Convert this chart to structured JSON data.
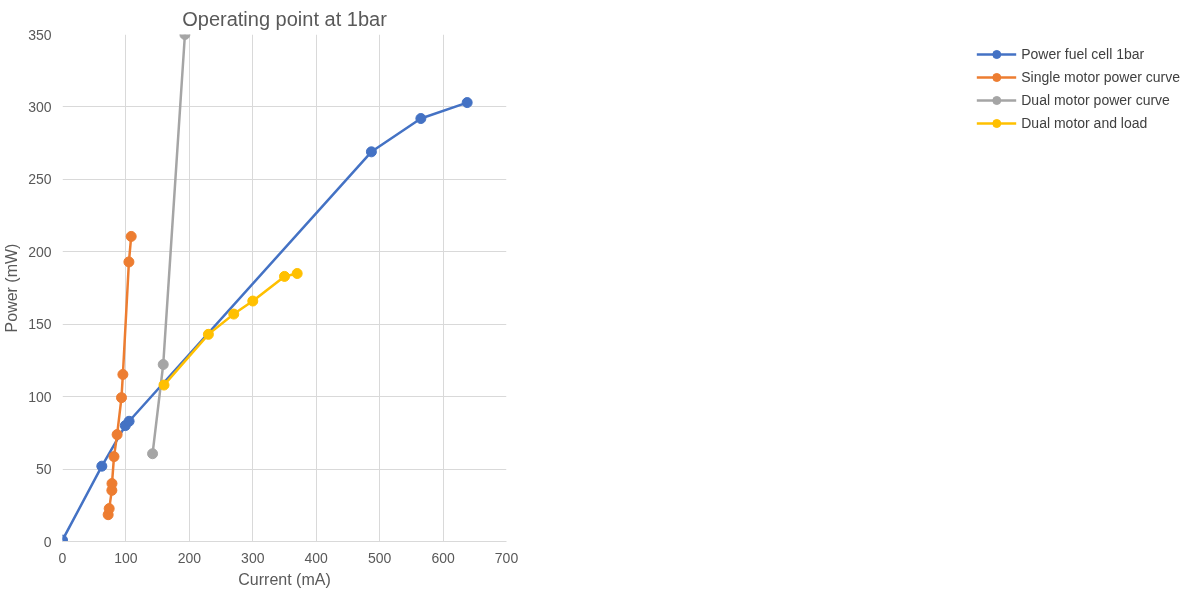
{
  "chart_data": {
    "type": "line",
    "title": "Operating point at 1bar",
    "xlabel": "Current (mA)",
    "ylabel": "Power (mW)",
    "xlim": [
      0,
      700
    ],
    "xticks": [
      0,
      100,
      200,
      300,
      400,
      500,
      600,
      700
    ],
    "ylim": [
      0,
      350
    ],
    "yticks": [
      0,
      50,
      100,
      150,
      200,
      250,
      300,
      350
    ],
    "grid": true,
    "legend": "right",
    "marker": "circle",
    "series": [
      {
        "name": "Power fuel cell 1bar",
        "color": "#4472c4",
        "x": [
          0,
          62,
          99,
          105,
          487,
          565,
          638
        ],
        "values": [
          1,
          52,
          80,
          83,
          269,
          292,
          303
        ]
      },
      {
        "name": "Single motor power curve",
        "color": "#ed7d31",
        "x": [
          72,
          73.6,
          77.8,
          78,
          81.2,
          86.1,
          93,
          95.2,
          104.7,
          108.3
        ],
        "values": [
          18.5,
          22.7,
          35.3,
          40,
          58.6,
          73.8,
          99.3,
          115.3,
          193,
          210.6
        ]
      },
      {
        "name": "Dual motor power curve",
        "color": "#a5a5a5",
        "x": [
          142,
          158.8,
          193
        ],
        "values": [
          60.6,
          122.2,
          350
        ]
      },
      {
        "name": "Dual motor and load",
        "color": "#ffc000",
        "x": [
          160,
          230,
          270,
          300,
          350,
          370
        ],
        "values": [
          108,
          143,
          157,
          166,
          183,
          185
        ]
      }
    ]
  }
}
